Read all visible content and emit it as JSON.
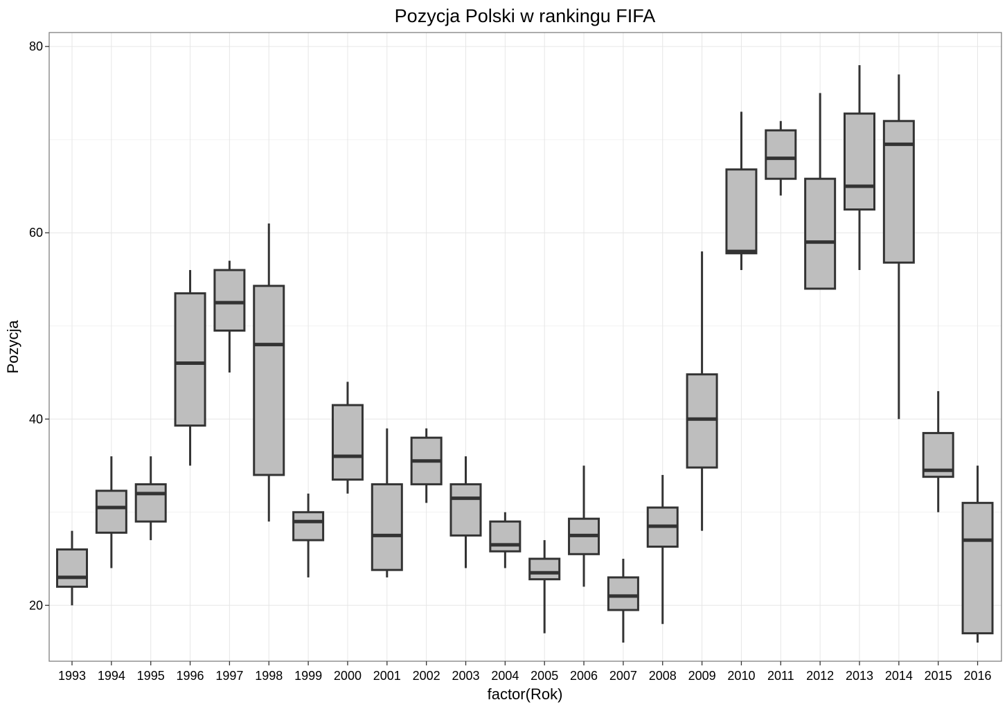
{
  "chart_data": {
    "type": "boxplot",
    "title": "Pozycja Polski w rankingu FIFA",
    "xlabel": "factor(Rok)",
    "ylabel": "Pozycja",
    "ylim": [
      14,
      81.5
    ],
    "yticks": [
      20,
      40,
      60,
      80
    ],
    "grid": true,
    "colors": {
      "box_fill": "#bebebe",
      "box_stroke": "#333333"
    },
    "categories": [
      "1993",
      "1994",
      "1995",
      "1996",
      "1997",
      "1998",
      "1999",
      "2000",
      "2001",
      "2002",
      "2003",
      "2004",
      "2005",
      "2006",
      "2007",
      "2008",
      "2009",
      "2010",
      "2011",
      "2012",
      "2013",
      "2014",
      "2015",
      "2016"
    ],
    "boxes": [
      {
        "min": 20,
        "q1": 22,
        "median": 23,
        "q3": 26,
        "max": 28
      },
      {
        "min": 24,
        "q1": 27.8,
        "median": 30.5,
        "q3": 32.3,
        "max": 36
      },
      {
        "min": 27,
        "q1": 29,
        "median": 32,
        "q3": 33,
        "max": 36
      },
      {
        "min": 35,
        "q1": 39.3,
        "median": 46,
        "q3": 53.5,
        "max": 56
      },
      {
        "min": 45,
        "q1": 49.5,
        "median": 52.5,
        "q3": 56,
        "max": 57
      },
      {
        "min": 29,
        "q1": 34,
        "median": 48,
        "q3": 54.3,
        "max": 61
      },
      {
        "min": 23,
        "q1": 27,
        "median": 29,
        "q3": 30,
        "max": 32
      },
      {
        "min": 32,
        "q1": 33.5,
        "median": 36,
        "q3": 41.5,
        "max": 44
      },
      {
        "min": 23,
        "q1": 23.8,
        "median": 27.5,
        "q3": 33,
        "max": 39
      },
      {
        "min": 31,
        "q1": 33,
        "median": 35.5,
        "q3": 38,
        "max": 39
      },
      {
        "min": 24,
        "q1": 27.5,
        "median": 31.5,
        "q3": 33,
        "max": 36
      },
      {
        "min": 24,
        "q1": 25.8,
        "median": 26.5,
        "q3": 29,
        "max": 30
      },
      {
        "min": 17,
        "q1": 22.8,
        "median": 23.5,
        "q3": 25,
        "max": 27
      },
      {
        "min": 22,
        "q1": 25.5,
        "median": 27.5,
        "q3": 29.3,
        "max": 35
      },
      {
        "min": 16,
        "q1": 19.5,
        "median": 21,
        "q3": 23,
        "max": 25
      },
      {
        "min": 18,
        "q1": 26.3,
        "median": 28.5,
        "q3": 30.5,
        "max": 34
      },
      {
        "min": 28,
        "q1": 34.8,
        "median": 40,
        "q3": 44.8,
        "max": 58
      },
      {
        "min": 56,
        "q1": 57.8,
        "median": 58,
        "q3": 66.8,
        "max": 73
      },
      {
        "min": 64,
        "q1": 65.8,
        "median": 68,
        "q3": 71,
        "max": 72
      },
      {
        "min": 54,
        "q1": 54,
        "median": 59,
        "q3": 65.8,
        "max": 75
      },
      {
        "min": 56,
        "q1": 62.5,
        "median": 65,
        "q3": 72.8,
        "max": 78
      },
      {
        "min": 40,
        "q1": 56.8,
        "median": 69.5,
        "q3": 72,
        "max": 77
      },
      {
        "min": 30,
        "q1": 33.8,
        "median": 34.5,
        "q3": 38.5,
        "max": 43
      },
      {
        "min": 16,
        "q1": 17,
        "median": 27,
        "q3": 31,
        "max": 35
      }
    ]
  }
}
